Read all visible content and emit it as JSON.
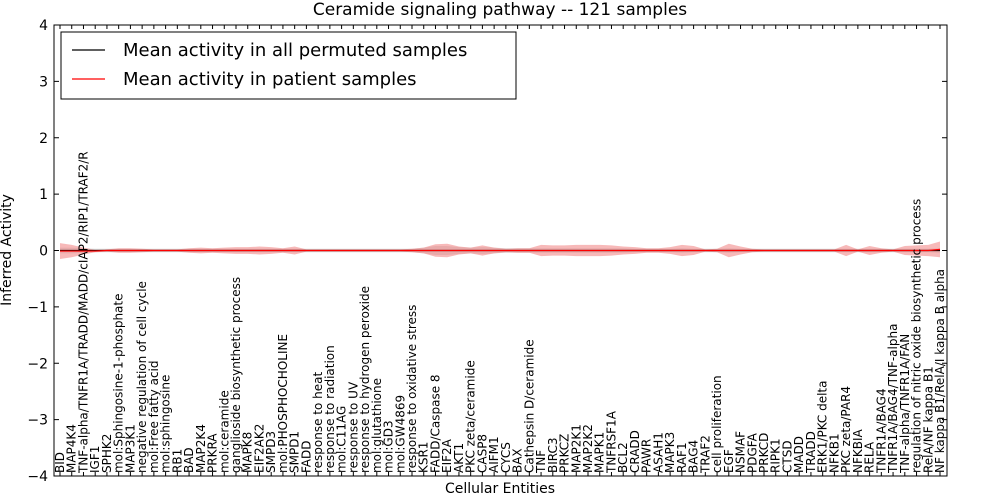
{
  "chart_data": {
    "type": "line",
    "title": "Ceramide signaling pathway -- 121 samples",
    "xlabel": "Cellular Entities",
    "ylabel": "Inferred Activity",
    "ylim": [
      -4,
      4
    ],
    "yticks": [
      -4,
      -3,
      -2,
      -1,
      0,
      1,
      2,
      3,
      4
    ],
    "grid": false,
    "legend_position": "top-left",
    "categories": [
      "BID",
      "MAP4K4",
      "TNF-alpha/TNFR1A/TRADD/MADD/cIAP2/RIP1/TRAF2/R",
      "IGF1",
      "SPHK2",
      "mol:Sphingosine-1-phosphate",
      "MAP3K1",
      "negative regulation of cell cycle",
      "mol:Free fatty acid",
      "mol:sphingosine",
      "RB1",
      "BAD",
      "MAP2K4",
      "PRKRA",
      "mol:ceramide",
      "ganglioside biosynthetic process",
      "MAPK8",
      "EIF2AK2",
      "SMPD3",
      "mol:PHOSPHOCHOLINE",
      "SMPD1",
      "FADD",
      "response to heat",
      "response to radiation",
      "mol:C11AG",
      "response to UV",
      "response to hydrogen peroxide",
      "mol:glutathione",
      "mol:GD3",
      "mol:GW4869",
      "response to oxidative stress",
      "KSR1",
      "FADD/Caspase 8",
      "EIF2A",
      "AKT1",
      "PKC zeta/ceramide",
      "CASP8",
      "AIFM1",
      "CYCS",
      "BAX",
      "Cathepsin D/ceramide",
      "TNF",
      "BIRC3",
      "PRKCZ",
      "MAP2K1",
      "MAP2K2",
      "MAPK1",
      "TNFRSF1A",
      "BCL2",
      "CRADD",
      "PAWR",
      "ASAH1",
      "MAPK3",
      "RAF1",
      "BAG4",
      "TRAF2",
      "cell proliferation",
      "EGF",
      "NSMAF",
      "PDGFA",
      "PRKCD",
      "RIPK1",
      "CTSD",
      "MADD",
      "TRADD",
      "ERK1/PKC delta",
      "NFKB1",
      "PKC zeta/PAR4",
      "NFKBIA",
      "RELA",
      "TNFR1A/BAG4",
      "TNFR1A/BAG4/TNF-alpha",
      "TNF-alpha/TNFR1A/FAN",
      "regulation of nitric oxide biosynthetic process",
      "RelA/NF kappa B1",
      "NF kappa B1/RelA/I kappa B alpha"
    ],
    "series": [
      {
        "name": "Mean activity in all permuted samples",
        "color": "#000000",
        "band_color": "#c8c8c8",
        "values": [
          0,
          0,
          0,
          0,
          0,
          0,
          0,
          0,
          0,
          0,
          0,
          0,
          0,
          0,
          0,
          0,
          0,
          0,
          0,
          0,
          0,
          0,
          0,
          0,
          0,
          0,
          0,
          0,
          0,
          0,
          0,
          0,
          0,
          0,
          0,
          0,
          0,
          0,
          0,
          0,
          0,
          0,
          0,
          0,
          0,
          0,
          0,
          0,
          0,
          0,
          0,
          0,
          0,
          0,
          0,
          0,
          0,
          0,
          0,
          0,
          0,
          0,
          0,
          0,
          0,
          0,
          0,
          0,
          0,
          0,
          0,
          0,
          0,
          0,
          0,
          0
        ],
        "spread": [
          0.05,
          0.05,
          0.04,
          0.03,
          0.03,
          0.03,
          0.03,
          0.03,
          0.03,
          0.03,
          0.03,
          0.03,
          0.03,
          0.03,
          0.03,
          0.03,
          0.03,
          0.03,
          0.03,
          0.03,
          0.03,
          0.03,
          0.03,
          0.03,
          0.03,
          0.03,
          0.03,
          0.03,
          0.03,
          0.03,
          0.03,
          0.05,
          0.08,
          0.08,
          0.06,
          0.05,
          0.06,
          0.05,
          0.04,
          0.04,
          0.04,
          0.04,
          0.04,
          0.04,
          0.04,
          0.04,
          0.04,
          0.04,
          0.04,
          0.03,
          0.03,
          0.03,
          0.03,
          0.04,
          0.03,
          0.03,
          0.03,
          0.04,
          0.03,
          0.03,
          0.03,
          0.03,
          0.03,
          0.03,
          0.03,
          0.03,
          0.03,
          0.03,
          0.03,
          0.03,
          0.03,
          0.03,
          0.03,
          0.03,
          0.03,
          0.04
        ]
      },
      {
        "name": "Mean activity in patient samples",
        "color": "#ff0000",
        "band_color": "#f08080",
        "values": [
          -0.01,
          -0.01,
          -0.01,
          -0.01,
          0,
          0,
          0,
          0,
          0,
          0,
          0,
          0,
          0,
          0,
          0,
          0,
          0,
          0,
          0,
          0,
          0,
          0,
          0,
          0,
          0,
          0,
          0,
          0,
          0,
          0,
          0,
          0,
          0,
          0,
          0,
          0,
          0,
          0,
          0,
          0,
          0,
          0,
          0,
          0,
          0,
          0,
          0,
          0,
          0,
          0,
          0,
          0,
          0,
          0,
          0,
          0,
          0,
          0,
          0,
          0,
          0,
          0,
          0,
          0,
          0,
          0,
          0,
          0,
          0,
          0,
          0,
          0,
          0,
          0,
          0,
          0.02
        ],
        "spread": [
          0.14,
          0.11,
          0.06,
          0.02,
          0.02,
          0.04,
          0.04,
          0.03,
          0.02,
          0.02,
          0.02,
          0.04,
          0.05,
          0.04,
          0.05,
          0.06,
          0.06,
          0.07,
          0.06,
          0.04,
          0.07,
          0.02,
          0.02,
          0.02,
          0.02,
          0.02,
          0.02,
          0.02,
          0.02,
          0.02,
          0.03,
          0.05,
          0.11,
          0.12,
          0.07,
          0.05,
          0.09,
          0.05,
          0.03,
          0.04,
          0.04,
          0.1,
          0.09,
          0.09,
          0.1,
          0.1,
          0.1,
          0.09,
          0.07,
          0.06,
          0.04,
          0.04,
          0.06,
          0.1,
          0.08,
          0.02,
          0.03,
          0.12,
          0.07,
          0.03,
          0.02,
          0.02,
          0.02,
          0.02,
          0.02,
          0.02,
          0.02,
          0.1,
          0.02,
          0.08,
          0.04,
          0.02,
          0.08,
          0.09,
          0.1,
          0.14
        ]
      }
    ]
  }
}
